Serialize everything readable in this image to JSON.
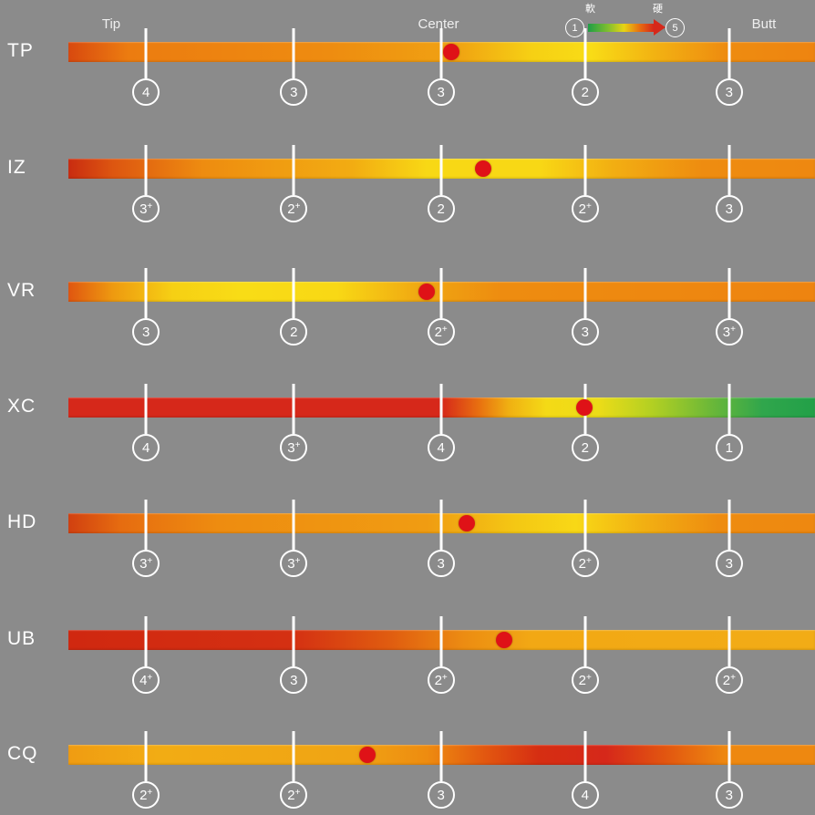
{
  "background": "#8b8b8b",
  "header": {
    "tip": "Tip",
    "center": "Center",
    "butt": "Butt"
  },
  "legend": {
    "min": "1",
    "max": "5",
    "soft": "軟",
    "hard": "硬",
    "gradient": [
      [
        "#1f9e46",
        0
      ],
      [
        "#7ebe30",
        30
      ],
      [
        "#e8d414",
        55
      ],
      [
        "#e87010",
        78
      ],
      [
        "#d6281a",
        100
      ]
    ],
    "arrow_color": "#d6281a"
  },
  "marker_color": "#df1217",
  "chart_data": {
    "type": "heatmap",
    "x_axis": {
      "labels": [
        "Tip",
        "Center",
        "Butt"
      ],
      "tick_positions_pct": [
        10.4,
        30.2,
        49.9,
        69.2,
        88.5
      ]
    },
    "legend": {
      "scale_min": "1",
      "scale_max": "5",
      "min_label": "軟",
      "max_label": "硬"
    },
    "series": [
      {
        "name": "TP",
        "values": [
          "4",
          "3",
          "3",
          "2",
          "3"
        ],
        "marker_pct": 51.3,
        "gradient": [
          [
            "#d8490f",
            0
          ],
          [
            "#ec7c10",
            8
          ],
          [
            "#ee8c10",
            35
          ],
          [
            "#f0a212",
            52
          ],
          [
            "#f6d014",
            62
          ],
          [
            "#f8dc16",
            70
          ],
          [
            "#f2b012",
            79
          ],
          [
            "#ee8c10",
            88
          ],
          [
            "#ee8410",
            100
          ]
        ]
      },
      {
        "name": "IZ",
        "values": [
          "3+",
          "2+",
          "2",
          "2+",
          "3"
        ],
        "marker_pct": 55.6,
        "gradient": [
          [
            "#c92c10",
            0
          ],
          [
            "#dd5610",
            6
          ],
          [
            "#ee8c10",
            18
          ],
          [
            "#f2ac12",
            38
          ],
          [
            "#f8d815",
            48
          ],
          [
            "#f8d815",
            63
          ],
          [
            "#f2ae12",
            73
          ],
          [
            "#ee8c10",
            85
          ],
          [
            "#ee8810",
            100
          ]
        ]
      },
      {
        "name": "VR",
        "values": [
          "3",
          "2",
          "2+",
          "3",
          "3+"
        ],
        "marker_pct": 48.0,
        "gradient": [
          [
            "#e05610",
            0
          ],
          [
            "#ee9a10",
            6
          ],
          [
            "#f6d014",
            14
          ],
          [
            "#f8dc16",
            23
          ],
          [
            "#f8d815",
            36
          ],
          [
            "#f0a812",
            47
          ],
          [
            "#ee8c10",
            58
          ],
          [
            "#ee8410",
            100
          ]
        ]
      },
      {
        "name": "XC",
        "values": [
          "4",
          "3+",
          "4",
          "2",
          "1"
        ],
        "marker_pct": 69.1,
        "gradient": [
          [
            "#d6281a",
            0
          ],
          [
            "#d6281a",
            50
          ],
          [
            "#e87010",
            55
          ],
          [
            "#f0b012",
            59
          ],
          [
            "#f4da16",
            64
          ],
          [
            "#ecdc18",
            71
          ],
          [
            "#b4d022",
            78
          ],
          [
            "#6cb838",
            86
          ],
          [
            "#30a64c",
            93
          ],
          [
            "#22a048",
            100
          ]
        ]
      },
      {
        "name": "HD",
        "values": [
          "3+",
          "3+",
          "3",
          "2+",
          "3"
        ],
        "marker_pct": 53.4,
        "gradient": [
          [
            "#d14010",
            0
          ],
          [
            "#e66c10",
            7
          ],
          [
            "#ee8c10",
            20
          ],
          [
            "#f09c12",
            48
          ],
          [
            "#f4c814",
            60
          ],
          [
            "#f8d816",
            68
          ],
          [
            "#f2b012",
            77
          ],
          [
            "#ee8c10",
            87
          ],
          [
            "#ee8810",
            100
          ]
        ]
      },
      {
        "name": "UB",
        "values": [
          "4+",
          "3",
          "2+",
          "2+",
          "2+"
        ],
        "marker_pct": 58.4,
        "gradient": [
          [
            "#d02810",
            0
          ],
          [
            "#d43012",
            30
          ],
          [
            "#e05c10",
            43
          ],
          [
            "#ec8c12",
            53
          ],
          [
            "#f2a814",
            62
          ],
          [
            "#f2ac16",
            100
          ]
        ]
      },
      {
        "name": "CQ",
        "values": [
          "2+",
          "2+",
          "3",
          "4",
          "3"
        ],
        "marker_pct": 40.0,
        "gradient": [
          [
            "#f09c12",
            0
          ],
          [
            "#f2ac14",
            12
          ],
          [
            "#f0a414",
            38
          ],
          [
            "#ee8c10",
            48
          ],
          [
            "#e25610",
            56
          ],
          [
            "#d62e12",
            63
          ],
          [
            "#d6281a",
            72
          ],
          [
            "#e25610",
            80
          ],
          [
            "#ee8810",
            88
          ],
          [
            "#ee8810",
            100
          ]
        ]
      }
    ]
  }
}
